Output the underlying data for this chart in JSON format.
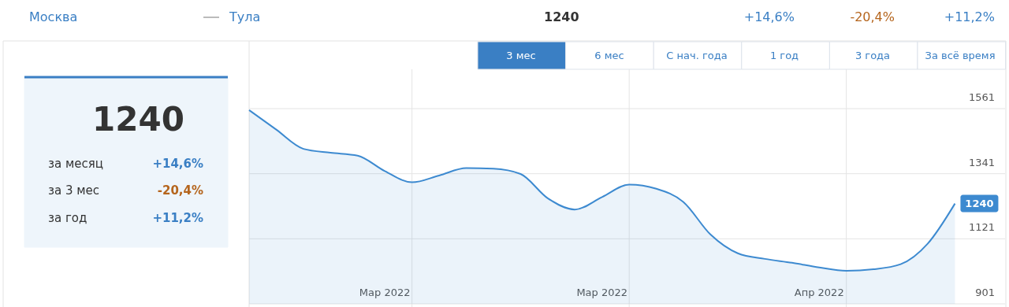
{
  "chart_data": {
    "type": "area",
    "annotations": [
      "Москва",
      "Тула",
      "1240",
      "+14,6%",
      "-20,4%",
      "+11,2%",
      "3 мес",
      "6 мес",
      "С нач. года",
      "1 год",
      "3 года",
      "За всё время",
      "1240",
      "за месяц",
      "+14,6%",
      "за 3 мес",
      "-20,4%",
      "за год",
      "+11,2%"
    ],
    "categories": [
      null,
      null,
      null,
      null,
      null,
      "Мар 2022",
      null,
      null,
      null,
      null,
      null,
      null,
      null,
      "Мар 2022",
      null,
      null,
      null,
      null,
      null,
      null,
      null,
      "Апр 2022",
      null,
      null,
      null,
      null,
      null
    ],
    "series": [
      {
        "color": "#3d8ad0",
        "values": [
          1556,
          1490,
          1425,
          1412,
          1402,
          1350,
          1312,
          1335,
          1360,
          1358,
          1340,
          1258,
          1220,
          1262,
          1304,
          1290,
          1245,
          1135,
          1072,
          1053,
          1040,
          1024,
          1013,
          1018,
          1035,
          1105,
          1240
        ],
        "value_labels": [
          null,
          null,
          null,
          null,
          null,
          null,
          null,
          null,
          null,
          null,
          null,
          null,
          null,
          null,
          null,
          null,
          null,
          null,
          null,
          null,
          null,
          null,
          null,
          null,
          null,
          null,
          "1240"
        ]
      }
    ],
    "ylim": [
      901,
      1561
    ],
    "yticks": [
      901,
      1121,
      1341,
      1561
    ],
    "grid": true,
    "marker": "none",
    "line_style": "solid"
  }
}
